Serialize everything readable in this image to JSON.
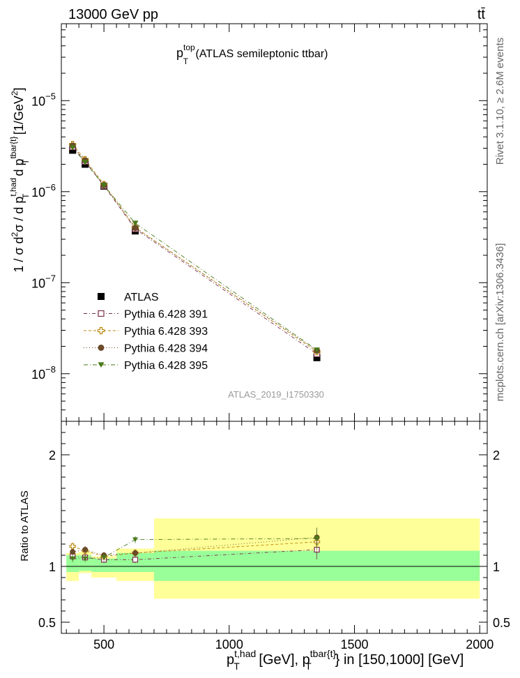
{
  "header": {
    "left": "13000 GeV pp",
    "right": "tt̄"
  },
  "side_labels": {
    "rivet": "Rivet 3.1.10, ≥ 2.6M events",
    "mcplots": "mcplots.cern.ch [arXiv:1306.3436]"
  },
  "colors": {
    "atlas": "#000000",
    "py391": "#7b2d4a",
    "py393": "#b8860b",
    "py394": "#6b4a2a",
    "py395": "#4a7a1a",
    "band_inner": "#99ff99",
    "band_outer": "#ffff99"
  },
  "chart_data": [
    {
      "type": "scatter",
      "panel": "main",
      "title": {
        "base": "p",
        "sup": "top",
        "sub": "T",
        "rest": " (ATLAS semileptonic ttbar)"
      },
      "watermark": "ATLAS_2019_I1750330",
      "ylabel": "1 / σ d²σ / d p_T^{t,had} d p_T^{tbar{t}} [1/GeV²]",
      "ylabel_parts": {
        "a": "1 / σ d",
        "a_sup": "2",
        "b": "σ / d p",
        "b_sup": "t,had",
        "b_sub": "T",
        "c": " d p",
        "c_sup": "tbar{t}",
        "c_sub": "T",
        "d": " [1/GeV",
        "d_sup": "2",
        "e": "]"
      },
      "yscale": "log",
      "ylim": [
        3e-09,
        7e-05
      ],
      "xlim": [
        330,
        2030
      ],
      "ytick_labels": [
        {
          "base": "10",
          "exp": "−8"
        },
        {
          "base": "10",
          "exp": "−7"
        },
        {
          "base": "10",
          "exp": "−6"
        },
        {
          "base": "10",
          "exp": "−5"
        }
      ],
      "legend_position": "lower-left",
      "series": [
        {
          "name": "ATLAS",
          "marker": "filled-square",
          "x": [
            375,
            425,
            500,
            625,
            1350
          ],
          "y": [
            2.85e-06,
            2e-06,
            1.15e-06,
            3.7e-07,
            1.5e-08
          ]
        },
        {
          "name": "Pythia 6.428 391",
          "marker": "open-square",
          "x": [
            375,
            425,
            500,
            625,
            1350
          ],
          "y": [
            3.1e-06,
            2.15e-06,
            1.16e-06,
            3.9e-07,
            1.65e-08
          ]
        },
        {
          "name": "Pythia 6.428 393",
          "marker": "open-cross",
          "x": [
            375,
            425,
            500,
            625,
            1350
          ],
          "y": [
            3.3e-06,
            2.25e-06,
            1.2e-06,
            4.05e-07,
            1.75e-08
          ]
        },
        {
          "name": "Pythia 6.428 394",
          "marker": "filled-circle",
          "x": [
            375,
            425,
            500,
            625,
            1350
          ],
          "y": [
            3.2e-06,
            2.2e-06,
            1.18e-06,
            4e-07,
            1.8e-08
          ]
        },
        {
          "name": "Pythia 6.428 395",
          "marker": "filled-triangle-down",
          "x": [
            375,
            425,
            500,
            625,
            1350
          ],
          "y": [
            3.05e-06,
            2.1e-06,
            1.17e-06,
            4.5e-07,
            1.82e-08
          ]
        }
      ]
    },
    {
      "type": "scatter",
      "panel": "ratio",
      "ylabel": "Ratio to ATLAS",
      "xlabel_parts": {
        "a": "p",
        "a_sup": "t,had",
        "a_sub": "T",
        "b": " [GeV], p",
        "b_sup": "tbar{t}",
        "b_sub": "T",
        "c": "} in [150,1000] [GeV]"
      },
      "ylim": [
        0.4,
        2.3
      ],
      "xlim": [
        330,
        2030
      ],
      "xticks": [
        500,
        1000,
        1500,
        2000
      ],
      "xtick_labels": [
        "500",
        "1000",
        "1500",
        "2000"
      ],
      "yticks": [
        0.5,
        1,
        2
      ],
      "ytick_labels": [
        "0.5",
        "1",
        "2"
      ],
      "uncertainty_bands": [
        {
          "x_range": [
            350,
            400
          ],
          "inner": [
            0.95,
            1.1
          ],
          "outer": [
            0.87,
            1.12
          ]
        },
        {
          "x_range": [
            400,
            450
          ],
          "inner": [
            0.96,
            1.1
          ],
          "outer": [
            0.94,
            1.13
          ]
        },
        {
          "x_range": [
            450,
            550
          ],
          "inner": [
            0.95,
            1.07
          ],
          "outer": [
            0.9,
            1.09
          ]
        },
        {
          "x_range": [
            550,
            700
          ],
          "inner": [
            0.95,
            1.12
          ],
          "outer": [
            0.87,
            1.16
          ]
        },
        {
          "x_range": [
            700,
            2000
          ],
          "inner": [
            0.87,
            1.14
          ],
          "outer": [
            0.71,
            1.43
          ]
        }
      ],
      "series": [
        {
          "name": "Pythia 6.428 391",
          "x": [
            375,
            425,
            500,
            625,
            1350
          ],
          "y": [
            1.09,
            1.08,
            1.06,
            1.06,
            1.15
          ]
        },
        {
          "name": "Pythia 6.428 393",
          "x": [
            375,
            425,
            500,
            625,
            1350
          ],
          "y": [
            1.18,
            1.14,
            1.09,
            1.12,
            1.22
          ]
        },
        {
          "name": "Pythia 6.428 394",
          "x": [
            375,
            425,
            500,
            625,
            1350
          ],
          "y": [
            1.13,
            1.15,
            1.1,
            1.12,
            1.26
          ]
        },
        {
          "name": "Pythia 6.428 395",
          "x": [
            375,
            425,
            500,
            625,
            1350
          ],
          "y": [
            1.07,
            1.07,
            1.08,
            1.24,
            1.25
          ]
        }
      ]
    }
  ]
}
